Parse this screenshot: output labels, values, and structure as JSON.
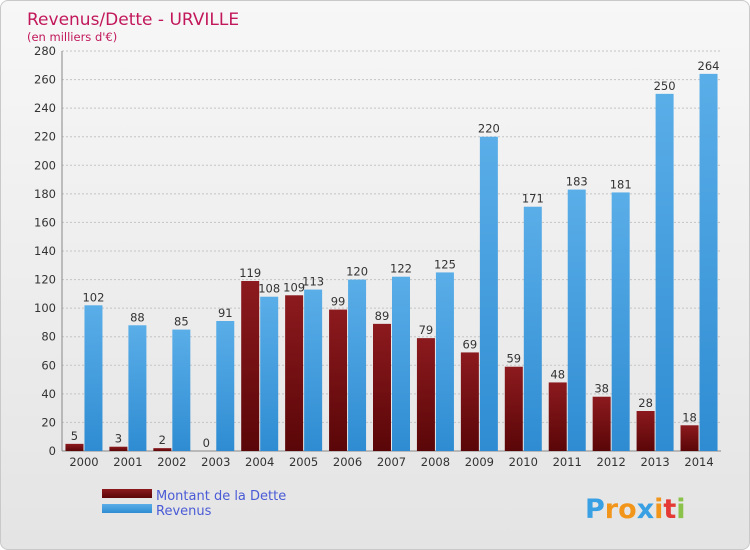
{
  "chart_data": {
    "type": "bar",
    "title": "Revenus/Dette - URVILLE",
    "subtitle": "(en milliers d'€)",
    "categories": [
      "2000",
      "2001",
      "2002",
      "2003",
      "2004",
      "2005",
      "2006",
      "2007",
      "2008",
      "2009",
      "2010",
      "2011",
      "2012",
      "2013",
      "2014"
    ],
    "series": [
      {
        "name": "Montant de la Dette",
        "color": "#7a0e12",
        "values": [
          5,
          3,
          2,
          0,
          119,
          109,
          99,
          89,
          79,
          69,
          59,
          48,
          38,
          28,
          18
        ]
      },
      {
        "name": "Revenus",
        "color": "#3a9be0",
        "values": [
          102,
          88,
          85,
          91,
          108,
          113,
          120,
          122,
          125,
          220,
          171,
          183,
          181,
          250,
          264
        ]
      }
    ],
    "ylim": [
      0,
      280
    ],
    "ytick_step": 20,
    "grid": true,
    "legend_position": "bottom-left"
  },
  "logo": {
    "text": "Proxiti"
  }
}
